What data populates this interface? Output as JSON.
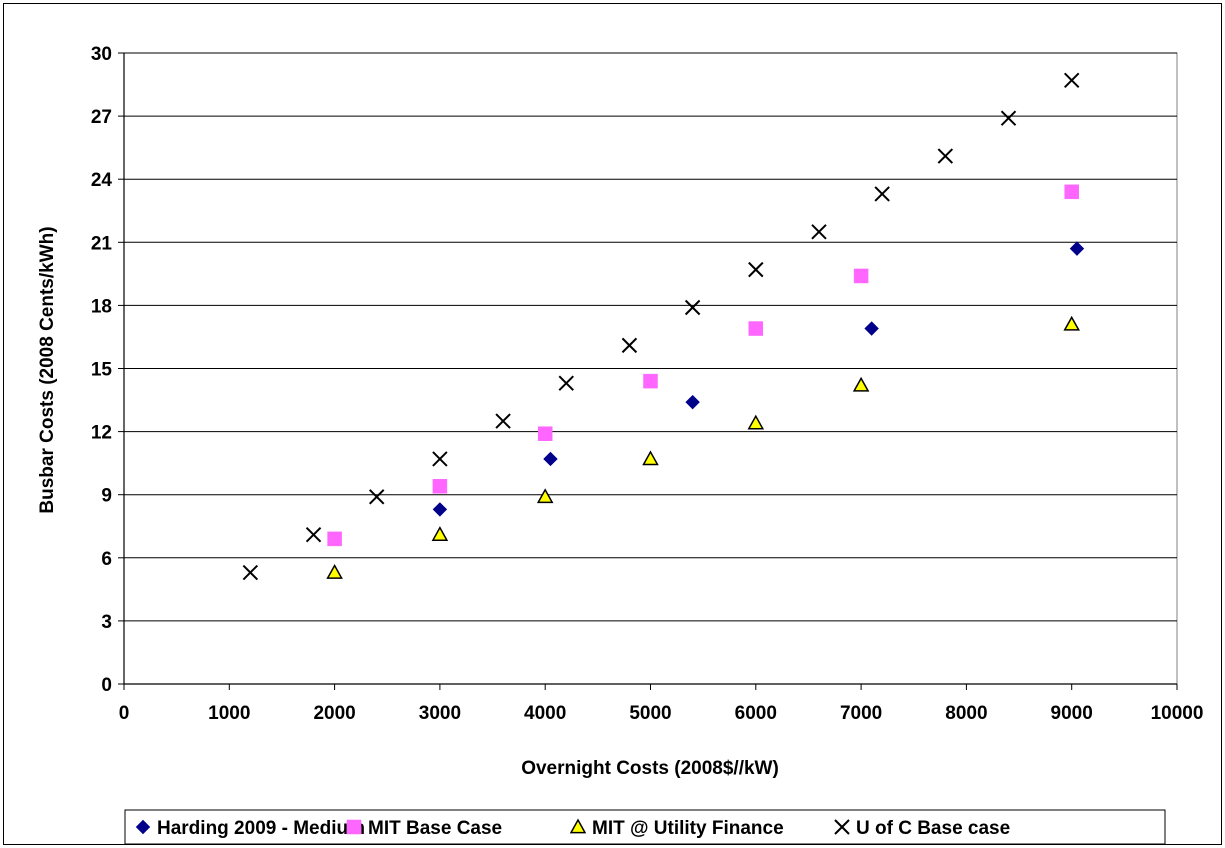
{
  "chart_data": {
    "type": "scatter",
    "title": "",
    "xlabel": "Overnight Costs (2008$//kW)",
    "ylabel": "Busbar Costs (2008 Cents/kWh)",
    "xlim": [
      0,
      10000
    ],
    "ylim": [
      0,
      30
    ],
    "x_ticks": [
      "0",
      "1000",
      "2000",
      "3000",
      "4000",
      "5000",
      "6000",
      "7000",
      "8000",
      "9000",
      "10000"
    ],
    "y_ticks": [
      "0",
      "3",
      "6",
      "9",
      "12",
      "15",
      "18",
      "21",
      "24",
      "27",
      "30"
    ],
    "grid": "horizontal",
    "legend_position": "bottom",
    "series": [
      {
        "name": "Harding 2009 - Medium",
        "marker": "diamond",
        "color": "#00008B",
        "points": [
          [
            3000,
            8.3
          ],
          [
            4050,
            10.7
          ],
          [
            5400,
            13.4
          ],
          [
            7100,
            16.9
          ],
          [
            9050,
            20.7
          ]
        ]
      },
      {
        "name": "MIT Base Case",
        "marker": "square",
        "color": "#FF66FF",
        "points": [
          [
            2000,
            6.9
          ],
          [
            3000,
            9.4
          ],
          [
            4000,
            11.9
          ],
          [
            5000,
            14.4
          ],
          [
            6000,
            16.9
          ],
          [
            7000,
            19.4
          ],
          [
            9000,
            23.4
          ]
        ]
      },
      {
        "name": "MIT @ Utility Finance",
        "marker": "triangle",
        "color": "#FFFF00",
        "points": [
          [
            2000,
            5.3
          ],
          [
            3000,
            7.1
          ],
          [
            4000,
            8.9
          ],
          [
            5000,
            10.7
          ],
          [
            6000,
            12.4
          ],
          [
            7000,
            14.2
          ],
          [
            9000,
            17.1
          ]
        ]
      },
      {
        "name": "U of C Base case",
        "marker": "x",
        "color": "#000000",
        "points": [
          [
            1200,
            5.3
          ],
          [
            1800,
            7.1
          ],
          [
            2400,
            8.9
          ],
          [
            3000,
            10.7
          ],
          [
            3600,
            12.5
          ],
          [
            4200,
            14.3
          ],
          [
            4800,
            16.1
          ],
          [
            5400,
            17.9
          ],
          [
            6000,
            19.7
          ],
          [
            6600,
            21.5
          ],
          [
            7200,
            23.3
          ],
          [
            7800,
            25.1
          ],
          [
            8400,
            26.9
          ],
          [
            9000,
            28.7
          ]
        ]
      }
    ]
  }
}
